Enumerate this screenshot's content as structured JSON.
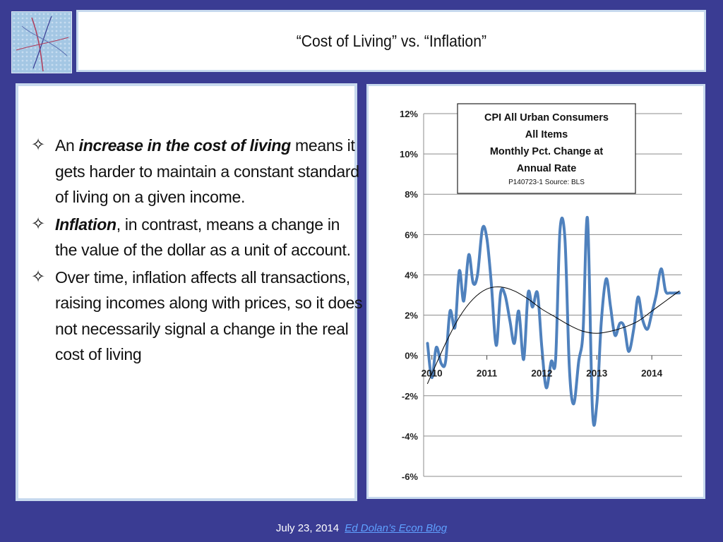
{
  "slide": {
    "title": "“Cost of Living” vs. “Inflation”",
    "bullets": [
      {
        "prefix": "An ",
        "emph": "increase in the cost of living",
        "rest": " means it gets harder to maintain a constant standard of living on a given income."
      },
      {
        "prefix": "",
        "emph": "Inflation",
        "rest": ", in contrast, means a change in the value of the dollar as a unit of account."
      },
      {
        "prefix": "",
        "emph": "",
        "rest": "Over time, inflation affects all transactions, raising incomes along with prices, so it does not necessarily signal a change in the real cost of living"
      }
    ],
    "bullet_glyph": "✧",
    "footer_date": "July 23, 2014",
    "footer_link": "Ed Dolan’s Econ Blog"
  },
  "chart_data": {
    "type": "line",
    "title_lines": [
      "CPI All Urban Consumers",
      "All Items",
      "Monthly Pct. Change at",
      "Annual Rate"
    ],
    "source": "P140723-1 Source: BLS",
    "y_ticks": [
      "12%",
      "10%",
      "8%",
      "6%",
      "4%",
      "2%",
      "0%",
      "-2%",
      "-4%",
      "-6%"
    ],
    "x_tick_labels": [
      "2010",
      "2011",
      "2012",
      "2013",
      "2014"
    ],
    "x_tick_values": [
      2010,
      2011,
      2012,
      2013,
      2014
    ],
    "ylim": [
      -6,
      12
    ],
    "xlim": [
      2009.85,
      2014.55
    ],
    "grid": true,
    "series": [
      {
        "kind": "monthly",
        "color": "#4f81bd",
        "x": [
          2009.92,
          2010.0,
          2010.08,
          2010.17,
          2010.25,
          2010.33,
          2010.42,
          2010.5,
          2010.58,
          2010.67,
          2010.75,
          2010.83,
          2010.92,
          2011.0,
          2011.08,
          2011.17,
          2011.25,
          2011.33,
          2011.42,
          2011.5,
          2011.58,
          2011.67,
          2011.75,
          2011.83,
          2011.92,
          2012.0,
          2012.08,
          2012.17,
          2012.25,
          2012.33,
          2012.42,
          2012.5,
          2012.58,
          2012.67,
          2012.75,
          2012.83,
          2012.92,
          2013.0,
          2013.08,
          2013.17,
          2013.25,
          2013.33,
          2013.42,
          2013.5,
          2013.58,
          2013.67,
          2013.75,
          2013.83,
          2013.92,
          2014.0,
          2014.08,
          2014.17,
          2014.25,
          2014.33,
          2014.42,
          2014.5
        ],
        "values": [
          0.6,
          -1.1,
          0.4,
          -0.4,
          -0.3,
          2.2,
          1.4,
          4.2,
          2.7,
          5.0,
          3.6,
          4.0,
          6.3,
          5.8,
          3.6,
          0.5,
          3.1,
          3.0,
          1.7,
          0.6,
          2.2,
          -0.2,
          3.1,
          2.4,
          3.1,
          0.4,
          -1.6,
          -0.3,
          -0.2,
          6.2,
          5.8,
          -0.6,
          -2.4,
          -0.3,
          1.2,
          6.8,
          -2.7,
          -2.4,
          1.6,
          3.8,
          2.4,
          1.0,
          1.6,
          1.4,
          0.2,
          1.3,
          2.9,
          1.8,
          1.3,
          2.1,
          3.0,
          4.3,
          3.2,
          3.1,
          3.1,
          3.1
        ]
      },
      {
        "kind": "trend",
        "color": "#000000",
        "x": [
          2009.92,
          2010.25,
          2010.5,
          2010.75,
          2011.0,
          2011.25,
          2011.5,
          2011.75,
          2012.0,
          2012.25,
          2012.5,
          2012.75,
          2013.0,
          2013.25,
          2013.5,
          2013.75,
          2014.0,
          2014.25,
          2014.5
        ],
        "values": [
          -1.4,
          0.6,
          1.9,
          2.8,
          3.3,
          3.4,
          3.2,
          2.8,
          2.3,
          1.9,
          1.5,
          1.2,
          1.1,
          1.2,
          1.4,
          1.7,
          2.2,
          2.7,
          3.2
        ]
      }
    ]
  }
}
